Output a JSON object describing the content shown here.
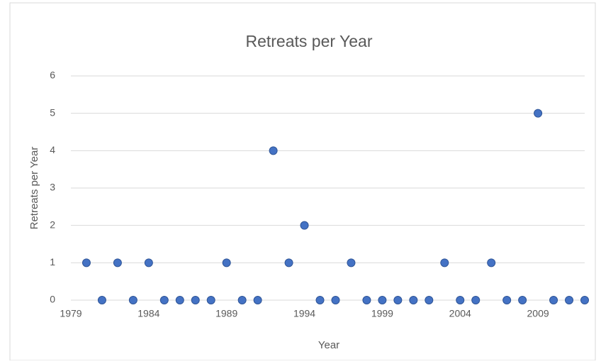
{
  "chart_data": {
    "type": "scatter",
    "title": "Retreats per Year",
    "x_label": "Year",
    "y_label": "Retreats per Year",
    "x": [
      1980,
      1981,
      1982,
      1983,
      1984,
      1985,
      1986,
      1987,
      1988,
      1989,
      1990,
      1991,
      1992,
      1993,
      1994,
      1995,
      1996,
      1997,
      1998,
      1999,
      2000,
      2001,
      2002,
      2003,
      2004,
      2005,
      2006,
      2007,
      2008,
      2009,
      2010,
      2011,
      2012
    ],
    "values": [
      1,
      0,
      1,
      0,
      1,
      0,
      0,
      0,
      0,
      1,
      0,
      0,
      4,
      1,
      2,
      0,
      0,
      1,
      0,
      0,
      0,
      0,
      0,
      1,
      0,
      0,
      1,
      0,
      0,
      5,
      0,
      0,
      0
    ],
    "color": "#4472c4",
    "xlim": [
      1979,
      2012
    ],
    "xticks": [
      1979,
      1984,
      1989,
      1994,
      1999,
      2004,
      2009
    ],
    "ylim": [
      0,
      6
    ],
    "yticks": [
      0,
      1,
      2,
      3,
      4,
      5,
      6
    ],
    "grid": true
  }
}
